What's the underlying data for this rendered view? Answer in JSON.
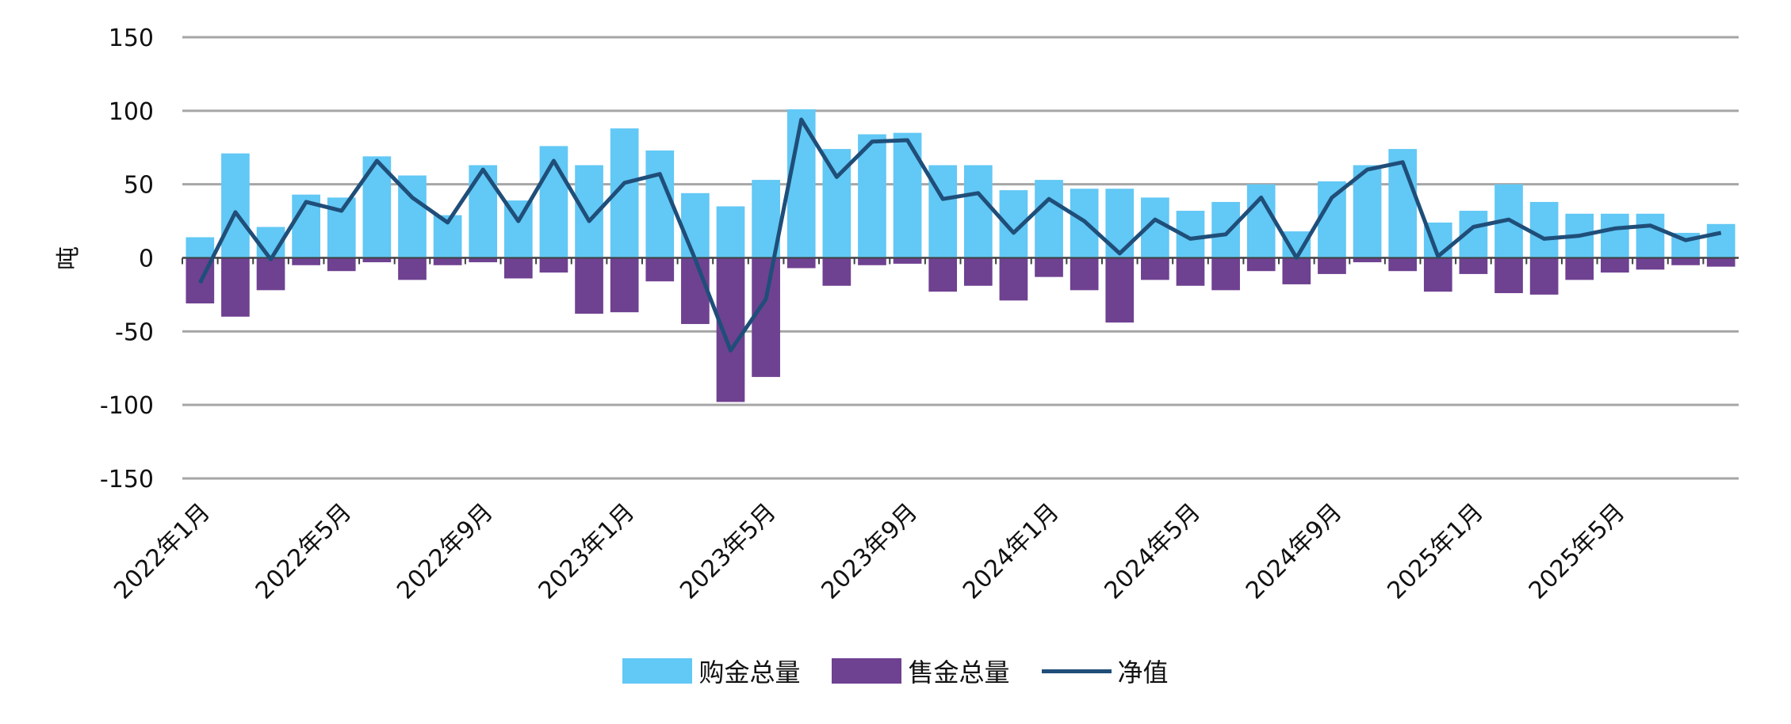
{
  "chart_data": {
    "type": "bar",
    "ylabel": "吨",
    "ylim": [
      -150,
      150
    ],
    "yticks": [
      150,
      100,
      50,
      0,
      -50,
      -100,
      -150
    ],
    "categories": [
      "2022年1月",
      "2022年2月",
      "2022年3月",
      "2022年4月",
      "2022年5月",
      "2022年6月",
      "2022年7月",
      "2022年8月",
      "2022年9月",
      "2022年10月",
      "2022年11月",
      "2022年12月",
      "2023年1月",
      "2023年2月",
      "2023年3月",
      "2023年4月",
      "2023年5月",
      "2023年6月",
      "2023年7月",
      "2023年8月",
      "2023年9月",
      "2023年10月",
      "2023年11月",
      "2023年12月",
      "2024年1月",
      "2024年2月",
      "2024年3月",
      "2024年4月",
      "2024年5月",
      "2024年6月",
      "2024年7月",
      "2024年8月",
      "2024年9月",
      "2024年10月",
      "2024年11月",
      "2024年12月",
      "2025年1月",
      "2025年2月",
      "2025年3月",
      "2025年4月",
      "2025年5月",
      "2025年6月",
      "2025年7月",
      "2025年8月"
    ],
    "xtick_labels": [
      "2022年1月",
      "2022年5月",
      "2022年9月",
      "2023年1月",
      "2023年5月",
      "2023年9月",
      "2024年1月",
      "2024年5月",
      "2024年9月",
      "2025年1月",
      "2025年5月"
    ],
    "xtick_indices": [
      0,
      4,
      8,
      12,
      16,
      20,
      24,
      28,
      32,
      36,
      40
    ],
    "grid": true,
    "legend_position": "bottom",
    "series": [
      {
        "name": "购金总量",
        "kind": "bar",
        "color": "#62c8f5",
        "values": [
          14,
          71,
          21,
          43,
          41,
          69,
          56,
          29,
          63,
          39,
          76,
          63,
          88,
          73,
          44,
          35,
          53,
          101,
          74,
          84,
          85,
          63,
          63,
          46,
          53,
          47,
          47,
          41,
          32,
          38,
          50,
          18,
          52,
          63,
          74,
          24,
          32,
          50,
          38,
          30,
          30,
          30,
          17,
          23
        ]
      },
      {
        "name": "售金总量",
        "kind": "bar",
        "color": "#6f4191",
        "values": [
          -31,
          -40,
          -22,
          -5,
          -9,
          -3,
          -15,
          -5,
          -3,
          -14,
          -10,
          -38,
          -37,
          -16,
          -45,
          -98,
          -81,
          -7,
          -19,
          -5,
          -4,
          -23,
          -19,
          -29,
          -13,
          -22,
          -44,
          -15,
          -19,
          -22,
          -9,
          -18,
          -11,
          -3,
          -9,
          -23,
          -11,
          -24,
          -25,
          -15,
          -10,
          -8,
          -5,
          -6
        ]
      },
      {
        "name": "净值",
        "kind": "line",
        "color": "#1f4e79",
        "values": [
          -17,
          31,
          -1,
          38,
          32,
          66,
          41,
          24,
          60,
          25,
          66,
          25,
          51,
          57,
          -1,
          -63,
          -28,
          94,
          55,
          79,
          80,
          40,
          44,
          17,
          40,
          25,
          3,
          26,
          13,
          16,
          41,
          0,
          41,
          60,
          65,
          1,
          21,
          26,
          13,
          15,
          20,
          22,
          12,
          17
        ]
      }
    ]
  }
}
